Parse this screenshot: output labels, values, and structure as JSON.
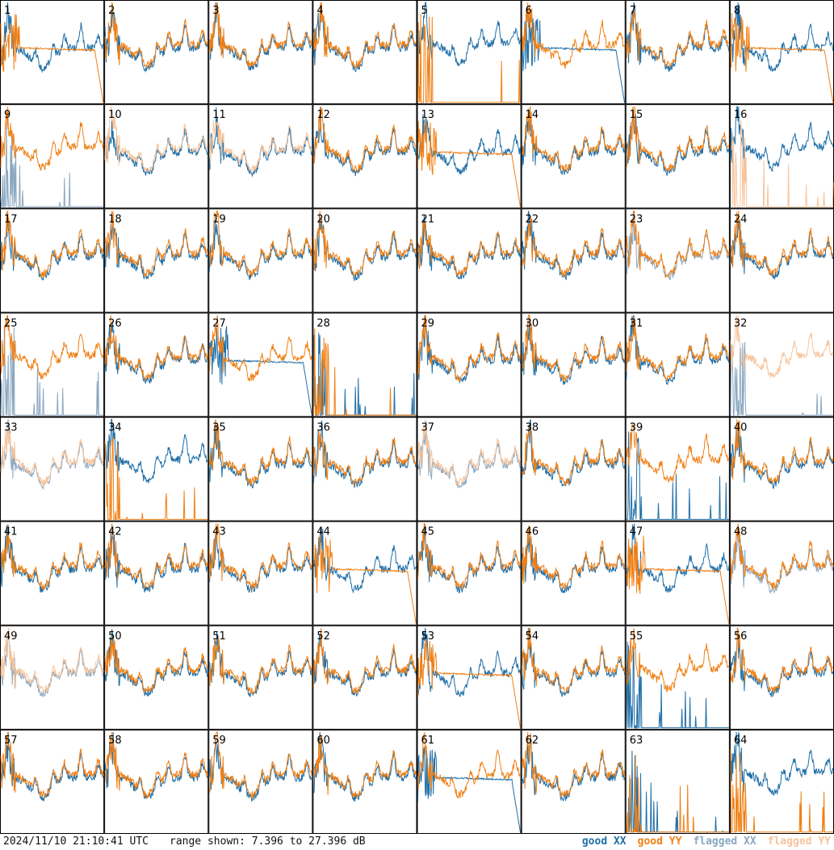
{
  "footer": {
    "timestamp": "2024/11/10 21:10:41 UTC",
    "range": "range shown: 7.396 to 27.396 dB"
  },
  "legend": [
    {
      "label": "good XX",
      "color": "#1f6fa8"
    },
    {
      "label": "good YY",
      "color": "#f07f13"
    },
    {
      "label": "flagged XX",
      "color": "#8aa7c0"
    },
    {
      "label": "flagged YY",
      "color": "#f7c39a"
    }
  ],
  "chart_data": {
    "type": "line",
    "grid": "8x8 small multiples",
    "ylim": [
      7.396,
      27.396
    ],
    "tile_labels": [
      "1",
      "2",
      "3",
      "4",
      "5",
      "6",
      "7",
      "8",
      "9",
      "10",
      "11",
      "12",
      "13",
      "14",
      "15",
      "16",
      "17",
      "18",
      "19",
      "20",
      "21",
      "22",
      "23",
      "24",
      "25",
      "26",
      "27",
      "28",
      "29",
      "30",
      "31",
      "32",
      "33",
      "34",
      "35",
      "36",
      "37",
      "38",
      "39",
      "40",
      "41",
      "42",
      "43",
      "44",
      "45",
      "46",
      "47",
      "48",
      "49",
      "50",
      "51",
      "52",
      "53",
      "54",
      "55",
      "56",
      "57",
      "58",
      "59",
      "60",
      "61",
      "62",
      "63",
      "64"
    ],
    "styles": {
      "normal": "both polarizations follow the common bandpass ripple",
      "decay_yy": "YY rolls off to floor at top of band",
      "decay_xx": "XX rolls off to floor at top of band",
      "spiky_xx": "XX near floor with isolated spikes",
      "spiky_yy": "YY near floor with isolated spikes",
      "both_spiky": "both polarizations near floor with isolated spikes",
      "flagged": "both polarizations flagged (light colours)"
    },
    "tiles": [
      {
        "n": 1,
        "style": "decay_yy",
        "flagX": false,
        "flagY": false
      },
      {
        "n": 2,
        "style": "normal",
        "flagX": false,
        "flagY": false
      },
      {
        "n": 3,
        "style": "normal",
        "flagX": false,
        "flagY": false
      },
      {
        "n": 4,
        "style": "normal",
        "flagX": false,
        "flagY": false
      },
      {
        "n": 5,
        "style": "spiky_yy",
        "flagX": false,
        "flagY": false
      },
      {
        "n": 6,
        "style": "decay_xx",
        "flagX": false,
        "flagY": false
      },
      {
        "n": 7,
        "style": "normal",
        "flagX": false,
        "flagY": false
      },
      {
        "n": 8,
        "style": "decay_yy",
        "flagX": false,
        "flagY": false
      },
      {
        "n": 9,
        "style": "spiky_xx",
        "flagX": true,
        "flagY": false
      },
      {
        "n": 10,
        "style": "normal",
        "flagX": false,
        "flagY": true
      },
      {
        "n": 11,
        "style": "normal",
        "flagX": false,
        "flagY": true
      },
      {
        "n": 12,
        "style": "normal",
        "flagX": false,
        "flagY": false
      },
      {
        "n": 13,
        "style": "decay_yy",
        "flagX": false,
        "flagY": false
      },
      {
        "n": 14,
        "style": "normal",
        "flagX": false,
        "flagY": false
      },
      {
        "n": 15,
        "style": "normal",
        "flagX": false,
        "flagY": false
      },
      {
        "n": 16,
        "style": "spiky_yy",
        "flagX": false,
        "flagY": true
      },
      {
        "n": 17,
        "style": "normal",
        "flagX": false,
        "flagY": false
      },
      {
        "n": 18,
        "style": "normal",
        "flagX": false,
        "flagY": false
      },
      {
        "n": 19,
        "style": "normal",
        "flagX": false,
        "flagY": false
      },
      {
        "n": 20,
        "style": "normal",
        "flagX": false,
        "flagY": false
      },
      {
        "n": 21,
        "style": "normal",
        "flagX": false,
        "flagY": false
      },
      {
        "n": 22,
        "style": "normal",
        "flagX": false,
        "flagY": false
      },
      {
        "n": 23,
        "style": "normal",
        "flagX": true,
        "flagY": false
      },
      {
        "n": 24,
        "style": "normal",
        "flagX": false,
        "flagY": false
      },
      {
        "n": 25,
        "style": "spiky_xx",
        "flagX": true,
        "flagY": false
      },
      {
        "n": 26,
        "style": "normal",
        "flagX": false,
        "flagY": false
      },
      {
        "n": 27,
        "style": "decay_xx",
        "flagX": false,
        "flagY": false
      },
      {
        "n": 28,
        "style": "both_spiky",
        "flagX": false,
        "flagY": false
      },
      {
        "n": 29,
        "style": "normal",
        "flagX": false,
        "flagY": false
      },
      {
        "n": 30,
        "style": "normal",
        "flagX": false,
        "flagY": false
      },
      {
        "n": 31,
        "style": "normal",
        "flagX": false,
        "flagY": false
      },
      {
        "n": 32,
        "style": "spiky_xx",
        "flagX": true,
        "flagY": true
      },
      {
        "n": 33,
        "style": "flagged",
        "flagX": true,
        "flagY": true
      },
      {
        "n": 34,
        "style": "spiky_yy",
        "flagX": false,
        "flagY": false
      },
      {
        "n": 35,
        "style": "normal",
        "flagX": false,
        "flagY": false
      },
      {
        "n": 36,
        "style": "normal",
        "flagX": false,
        "flagY": false
      },
      {
        "n": 37,
        "style": "flagged",
        "flagX": true,
        "flagY": true
      },
      {
        "n": 38,
        "style": "normal",
        "flagX": false,
        "flagY": false
      },
      {
        "n": 39,
        "style": "spiky_xx",
        "flagX": false,
        "flagY": false
      },
      {
        "n": 40,
        "style": "normal",
        "flagX": false,
        "flagY": false
      },
      {
        "n": 41,
        "style": "normal",
        "flagX": false,
        "flagY": false
      },
      {
        "n": 42,
        "style": "normal",
        "flagX": false,
        "flagY": false
      },
      {
        "n": 43,
        "style": "normal",
        "flagX": false,
        "flagY": false
      },
      {
        "n": 44,
        "style": "decay_yy",
        "flagX": false,
        "flagY": false
      },
      {
        "n": 45,
        "style": "normal",
        "flagX": false,
        "flagY": false
      },
      {
        "n": 46,
        "style": "normal",
        "flagX": false,
        "flagY": false
      },
      {
        "n": 47,
        "style": "decay_yy",
        "flagX": false,
        "flagY": false
      },
      {
        "n": 48,
        "style": "normal",
        "flagX": true,
        "flagY": false
      },
      {
        "n": 49,
        "style": "flagged",
        "flagX": true,
        "flagY": true
      },
      {
        "n": 50,
        "style": "normal",
        "flagX": false,
        "flagY": false
      },
      {
        "n": 51,
        "style": "normal",
        "flagX": false,
        "flagY": false
      },
      {
        "n": 52,
        "style": "normal",
        "flagX": false,
        "flagY": false
      },
      {
        "n": 53,
        "style": "decay_yy",
        "flagX": false,
        "flagY": false
      },
      {
        "n": 54,
        "style": "normal",
        "flagX": false,
        "flagY": false
      },
      {
        "n": 55,
        "style": "spiky_xx",
        "flagX": false,
        "flagY": false
      },
      {
        "n": 56,
        "style": "normal",
        "flagX": false,
        "flagY": false
      },
      {
        "n": 57,
        "style": "normal",
        "flagX": false,
        "flagY": false
      },
      {
        "n": 58,
        "style": "normal",
        "flagX": false,
        "flagY": false
      },
      {
        "n": 59,
        "style": "normal",
        "flagX": false,
        "flagY": false
      },
      {
        "n": 60,
        "style": "normal",
        "flagX": false,
        "flagY": false
      },
      {
        "n": 61,
        "style": "decay_xx",
        "flagX": false,
        "flagY": false
      },
      {
        "n": 62,
        "style": "normal",
        "flagX": false,
        "flagY": false
      },
      {
        "n": 63,
        "style": "both_spiky",
        "flagX": false,
        "flagY": false
      },
      {
        "n": 64,
        "style": "spiky_yy",
        "flagX": false,
        "flagY": false
      }
    ]
  }
}
